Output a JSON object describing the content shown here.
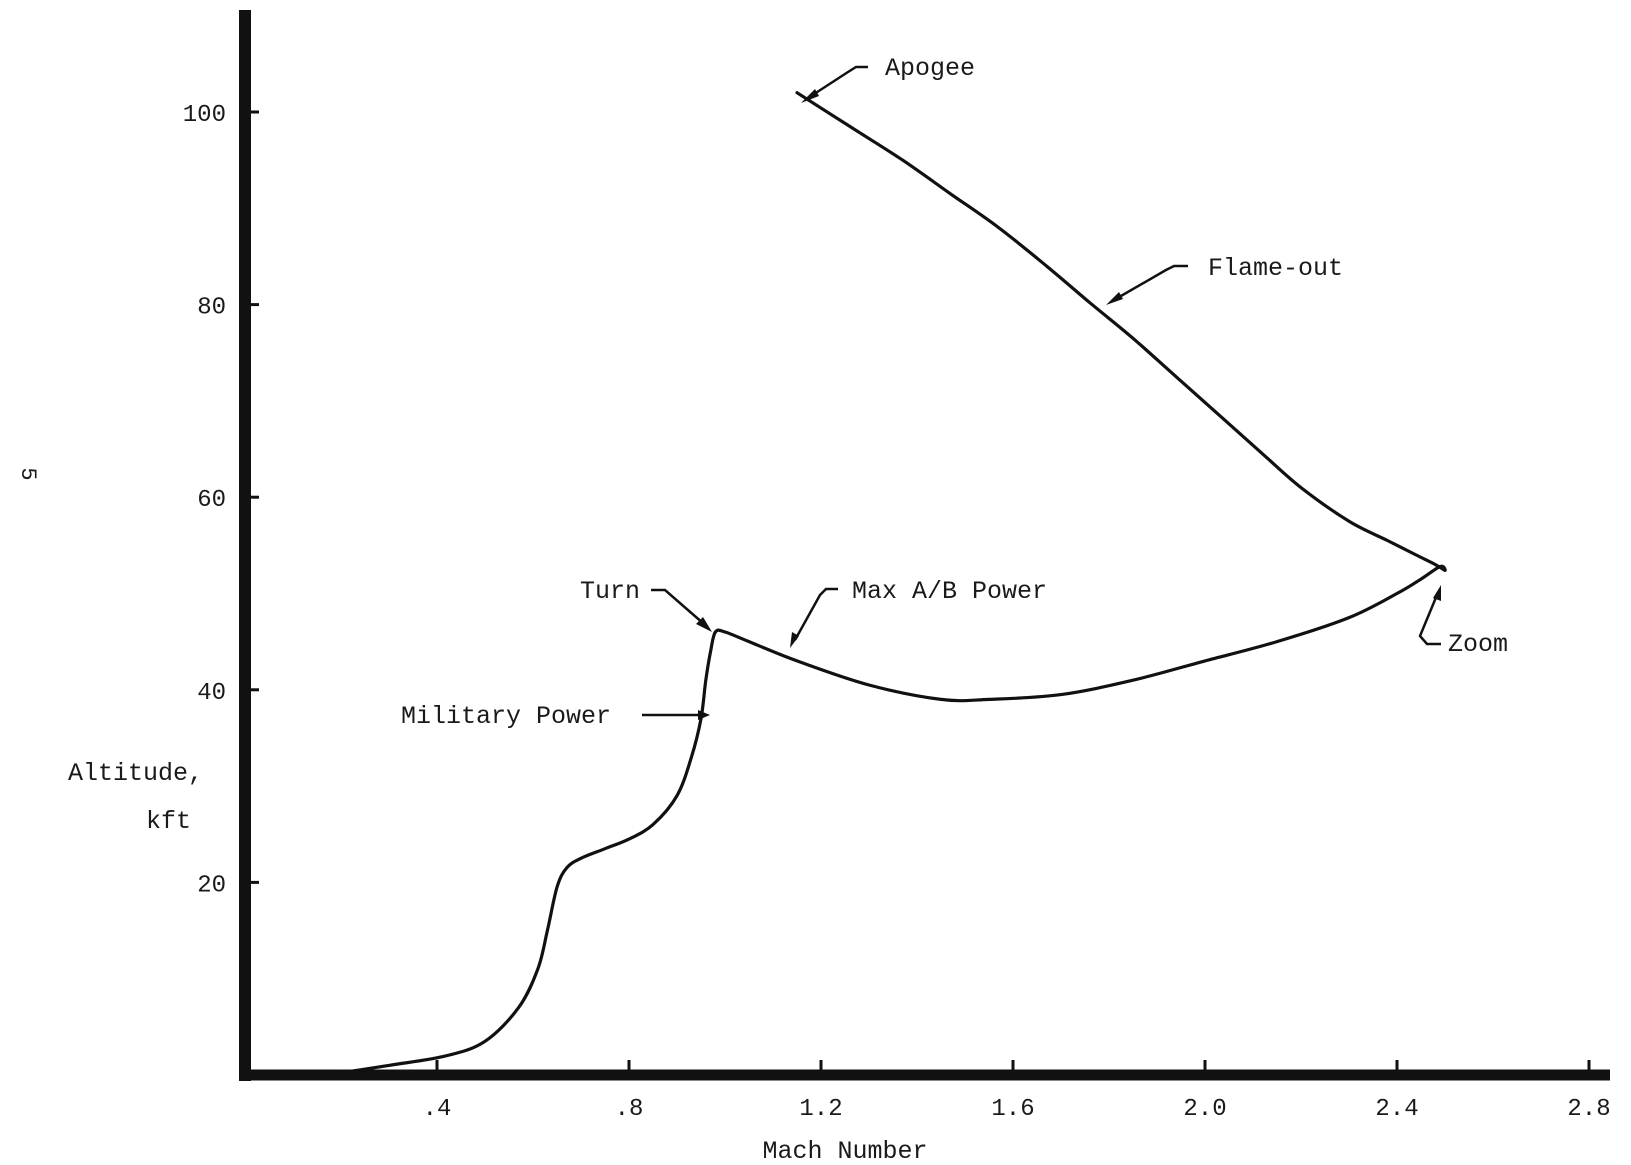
{
  "page_mark": "5",
  "chart_data": {
    "type": "line",
    "title": "",
    "xlabel": "Mach Number",
    "ylabel_lines": [
      "Altitude,",
      "kft"
    ],
    "xlim": [
      0,
      2.8
    ],
    "ylim": [
      0,
      110
    ],
    "x_ticks": [
      {
        "value": 0.4,
        "label": ".4"
      },
      {
        "value": 0.8,
        "label": ".8"
      },
      {
        "value": 1.2,
        "label": "1.2"
      },
      {
        "value": 1.6,
        "label": "1.6"
      },
      {
        "value": 2.0,
        "label": "2.0"
      },
      {
        "value": 2.4,
        "label": "2.4"
      },
      {
        "value": 2.8,
        "label": "2.8"
      }
    ],
    "y_ticks": [
      {
        "value": 20,
        "label": "20"
      },
      {
        "value": 40,
        "label": "40"
      },
      {
        "value": 60,
        "label": "60"
      },
      {
        "value": 80,
        "label": "80"
      },
      {
        "value": 100,
        "label": "100"
      }
    ],
    "grid": false,
    "legend": "none",
    "series": [
      {
        "x": [
          0.17,
          0.3,
          0.42,
          0.5,
          0.57,
          0.61,
          0.63,
          0.65,
          0.67,
          0.7,
          0.75,
          0.8,
          0.85,
          0.9,
          0.93,
          0.95,
          0.96,
          0.97,
          0.98,
          1.0,
          1.05,
          1.15,
          1.3,
          1.45,
          1.55,
          1.7,
          1.85,
          2.0,
          2.15,
          2.3,
          2.4,
          2.45,
          2.49,
          2.5,
          2.48,
          2.44,
          2.38,
          2.3,
          2.2,
          2.12,
          2.03,
          1.94,
          1.85,
          1.76,
          1.67,
          1.57,
          1.47,
          1.37,
          1.26,
          1.15
        ],
        "y": [
          0,
          1,
          2,
          3.5,
          7,
          11,
          15,
          19.5,
          21.5,
          22.5,
          23.5,
          24.5,
          26,
          29,
          33,
          37,
          41,
          44,
          46,
          46,
          45,
          43,
          40.5,
          39,
          39,
          39.5,
          41,
          43,
          45,
          47.5,
          50,
          51.5,
          52.8,
          52.4,
          53,
          54,
          55.5,
          57.5,
          61,
          64.5,
          68.5,
          72.5,
          76.5,
          80.2,
          84,
          88,
          91.5,
          95,
          98.5,
          102
        ]
      }
    ],
    "annotations": [
      {
        "text": "Apogee",
        "x": 1.15,
        "y": 102
      },
      {
        "text": "Flame-out",
        "x": 1.76,
        "y": 80.2
      },
      {
        "text": "Turn",
        "x": 0.98,
        "y": 46
      },
      {
        "text": "Max A/B Power",
        "x": 1.11,
        "y": 44.2
      },
      {
        "text": "Military Power",
        "x": 0.95,
        "y": 37.5
      },
      {
        "text": "Zoom",
        "x": 2.49,
        "y": 52.5
      }
    ]
  }
}
